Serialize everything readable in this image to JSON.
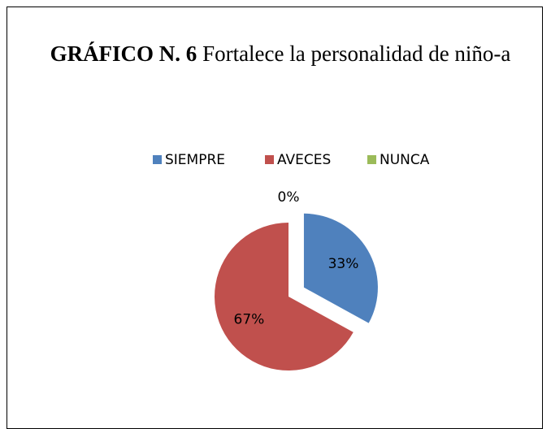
{
  "chart_data": {
    "type": "pie",
    "title_number": "GRÁFICO N. 6",
    "title": "Fortalece la personalidad de niño-a",
    "categories": [
      "SIEMPRE",
      "AVECES",
      "NUNCA"
    ],
    "values": [
      33,
      67,
      0
    ],
    "value_labels": [
      "33%",
      "67%",
      "0%"
    ],
    "colors": [
      "#4f81bd",
      "#c0504d",
      "#9bbb59"
    ],
    "exploded": [
      true,
      false,
      false
    ],
    "legend": "top"
  }
}
